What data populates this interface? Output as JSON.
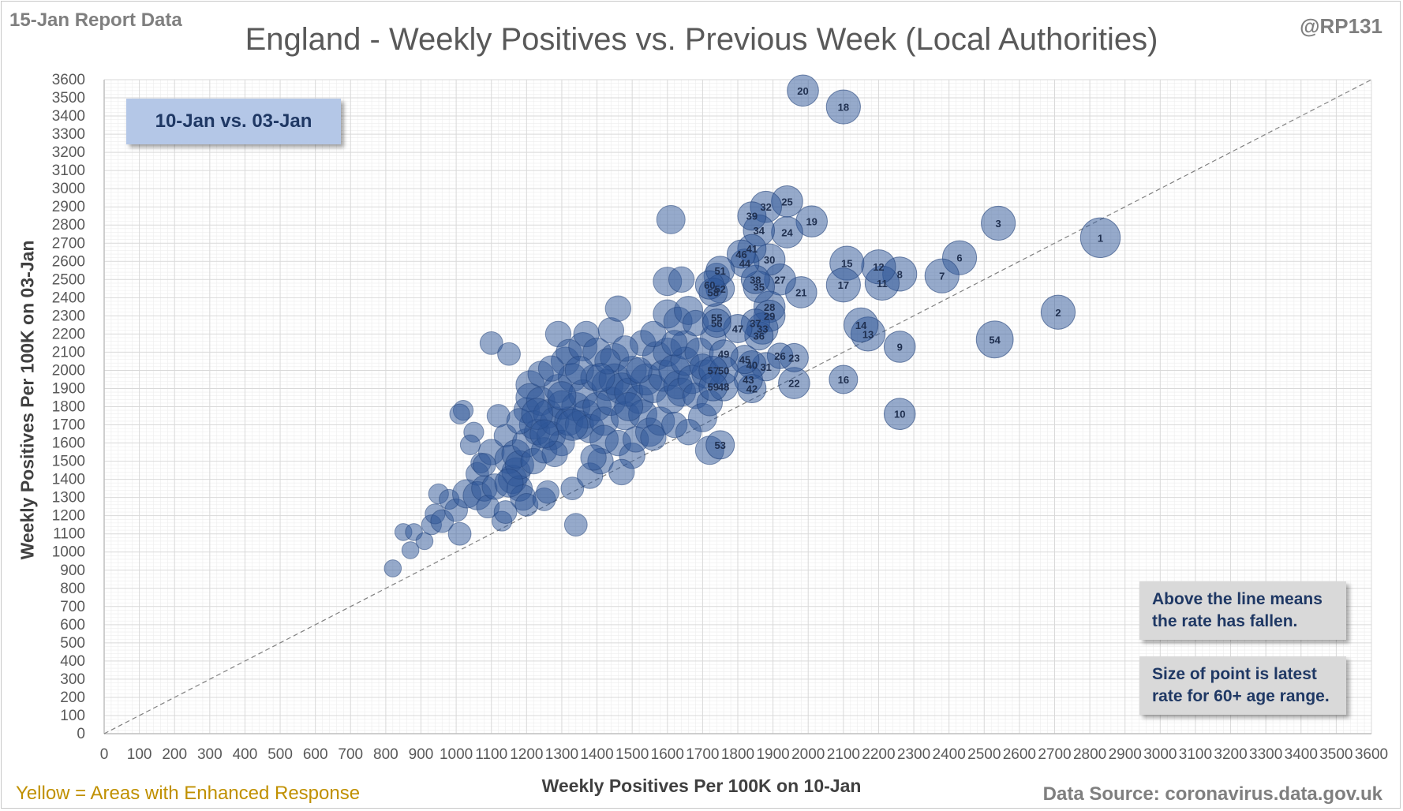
{
  "header": {
    "report_date": "15-Jan Report Data",
    "handle": "@RP131",
    "title": "England - Weekly Positives vs. Previous Week (Local Authorities)"
  },
  "date_box": "10-Jan vs. 03-Jan",
  "notes": [
    "Above the line means the rate has fallen.",
    "Size of point is latest rate for 60+ age range."
  ],
  "footer": {
    "legend_text": "Yellow = Areas with Enhanced  Response",
    "source": "Data Source: coronavirus.data.gov.uk"
  },
  "colors": {
    "bubble": "#2e5597",
    "bubble_stroke": "#1f3f78",
    "enhanced": "#c09000",
    "grid": "#d9d9d9",
    "box": "#b4c7e7",
    "note_box": "#d9d9d9"
  },
  "chart_data": {
    "type": "scatter",
    "title": "England - Weekly Positives vs. Previous Week (Local Authorities)",
    "xlabel": "Weekly Positives Per 100K on 10-Jan",
    "ylabel": "Weekly Positives Per 100K on 03-Jan",
    "xlim": [
      0,
      3600
    ],
    "ylim": [
      0,
      3600
    ],
    "x_ticks": [
      0,
      100,
      200,
      300,
      400,
      500,
      600,
      700,
      800,
      900,
      1000,
      1100,
      1200,
      1300,
      1400,
      1500,
      1600,
      1700,
      1800,
      1900,
      2000,
      2100,
      2200,
      2300,
      2400,
      2500,
      2600,
      2700,
      2800,
      2900,
      3000,
      3100,
      3200,
      3300,
      3400,
      3500,
      3600
    ],
    "y_ticks": [
      0,
      100,
      200,
      300,
      400,
      500,
      600,
      700,
      800,
      900,
      1000,
      1100,
      1200,
      1300,
      1400,
      1500,
      1600,
      1700,
      1800,
      1900,
      2000,
      2100,
      2200,
      2300,
      2400,
      2500,
      2600,
      2700,
      2800,
      2900,
      3000,
      3100,
      3200,
      3300,
      3400,
      3500,
      3600
    ],
    "grid": true,
    "reference_line": "y = x",
    "labelled_points": [
      {
        "label": "1",
        "x": 2830,
        "y": 2730,
        "size": 1.4
      },
      {
        "label": "2",
        "x": 2710,
        "y": 2320,
        "size": 1.2
      },
      {
        "label": "3",
        "x": 2540,
        "y": 2810,
        "size": 1.2
      },
      {
        "label": "54",
        "x": 2530,
        "y": 2170,
        "size": 1.3
      },
      {
        "label": "6",
        "x": 2430,
        "y": 2620,
        "size": 1.2
      },
      {
        "label": "7",
        "x": 2380,
        "y": 2520,
        "size": 1.2
      },
      {
        "label": "8",
        "x": 2260,
        "y": 2530,
        "size": 1.2
      },
      {
        "label": "9",
        "x": 2260,
        "y": 2130,
        "size": 1.1
      },
      {
        "label": "10",
        "x": 2260,
        "y": 1760,
        "size": 1.1
      },
      {
        "label": "11",
        "x": 2210,
        "y": 2480,
        "size": 1.2
      },
      {
        "label": "12",
        "x": 2200,
        "y": 2570,
        "size": 1.2
      },
      {
        "label": "13",
        "x": 2170,
        "y": 2200,
        "size": 1.2
      },
      {
        "label": "14",
        "x": 2150,
        "y": 2250,
        "size": 1.2
      },
      {
        "label": "15",
        "x": 2110,
        "y": 2590,
        "size": 1.2
      },
      {
        "label": "16",
        "x": 2100,
        "y": 1950,
        "size": 1.0
      },
      {
        "label": "17",
        "x": 2100,
        "y": 2470,
        "size": 1.2
      },
      {
        "label": "18",
        "x": 2100,
        "y": 3450,
        "size": 1.2
      },
      {
        "label": "19",
        "x": 2010,
        "y": 2820,
        "size": 1.1
      },
      {
        "label": "20",
        "x": 1985,
        "y": 3540,
        "size": 1.1
      },
      {
        "label": "21",
        "x": 1980,
        "y": 2430,
        "size": 1.1
      },
      {
        "label": "22",
        "x": 1960,
        "y": 1930,
        "size": 1.1
      },
      {
        "label": "23",
        "x": 1960,
        "y": 2070,
        "size": 1.0
      },
      {
        "label": "24",
        "x": 1940,
        "y": 2760,
        "size": 1.1
      },
      {
        "label": "25",
        "x": 1940,
        "y": 2930,
        "size": 1.1
      },
      {
        "label": "26",
        "x": 1920,
        "y": 2080,
        "size": 0.9
      },
      {
        "label": "27",
        "x": 1920,
        "y": 2500,
        "size": 1.1
      },
      {
        "label": "28",
        "x": 1890,
        "y": 2350,
        "size": 1.1
      },
      {
        "label": "29",
        "x": 1890,
        "y": 2300,
        "size": 1.1
      },
      {
        "label": "30",
        "x": 1890,
        "y": 2610,
        "size": 1.1
      },
      {
        "label": "31",
        "x": 1880,
        "y": 2020,
        "size": 1.0
      },
      {
        "label": "32",
        "x": 1880,
        "y": 2900,
        "size": 1.1
      },
      {
        "label": "33",
        "x": 1870,
        "y": 2230,
        "size": 1.1
      },
      {
        "label": "34",
        "x": 1860,
        "y": 2770,
        "size": 1.1
      },
      {
        "label": "35",
        "x": 1860,
        "y": 2460,
        "size": 1.1
      },
      {
        "label": "36",
        "x": 1860,
        "y": 2190,
        "size": 1.0
      },
      {
        "label": "37",
        "x": 1850,
        "y": 2260,
        "size": 1.0
      },
      {
        "label": "38",
        "x": 1850,
        "y": 2500,
        "size": 1.0
      },
      {
        "label": "39",
        "x": 1840,
        "y": 2850,
        "size": 1.0
      },
      {
        "label": "40",
        "x": 1840,
        "y": 2030,
        "size": 1.0
      },
      {
        "label": "41",
        "x": 1840,
        "y": 2670,
        "size": 1.0
      },
      {
        "label": "42",
        "x": 1840,
        "y": 1900,
        "size": 1.0
      },
      {
        "label": "43",
        "x": 1830,
        "y": 1950,
        "size": 1.0
      },
      {
        "label": "44",
        "x": 1820,
        "y": 2590,
        "size": 1.0
      },
      {
        "label": "45",
        "x": 1820,
        "y": 2060,
        "size": 1.0
      },
      {
        "label": "46",
        "x": 1810,
        "y": 2640,
        "size": 1.0
      },
      {
        "label": "47",
        "x": 1800,
        "y": 2230,
        "size": 1.0
      },
      {
        "label": "48",
        "x": 1760,
        "y": 1910,
        "size": 1.0
      },
      {
        "label": "49",
        "x": 1760,
        "y": 2090,
        "size": 1.0
      },
      {
        "label": "50",
        "x": 1760,
        "y": 2000,
        "size": 1.0
      },
      {
        "label": "51",
        "x": 1750,
        "y": 2550,
        "size": 1.0
      },
      {
        "label": "52",
        "x": 1750,
        "y": 2450,
        "size": 1.0
      },
      {
        "label": "53",
        "x": 1750,
        "y": 1590,
        "size": 1.0
      },
      {
        "label": "55",
        "x": 1740,
        "y": 2290,
        "size": 1.0
      },
      {
        "label": "56",
        "x": 1740,
        "y": 2260,
        "size": 1.0
      },
      {
        "label": "57",
        "x": 1730,
        "y": 2000,
        "size": 1.0
      },
      {
        "label": "58",
        "x": 1730,
        "y": 2430,
        "size": 1.0
      },
      {
        "label": "59",
        "x": 1730,
        "y": 1910,
        "size": 1.0
      },
      {
        "label": "60",
        "x": 1720,
        "y": 2470,
        "size": 1.0
      }
    ],
    "other_points": [
      [
        820,
        910,
        0.6
      ],
      [
        850,
        1110,
        0.6
      ],
      [
        870,
        1010,
        0.6
      ],
      [
        880,
        1110,
        0.6
      ],
      [
        910,
        1060,
        0.6
      ],
      [
        930,
        1150,
        0.7
      ],
      [
        940,
        1210,
        0.7
      ],
      [
        950,
        1320,
        0.7
      ],
      [
        960,
        1170,
        0.8
      ],
      [
        980,
        1290,
        0.7
      ],
      [
        1000,
        1230,
        0.8
      ],
      [
        1010,
        1100,
        0.8
      ],
      [
        1020,
        1780,
        0.7
      ],
      [
        1010,
        1760,
        0.7
      ],
      [
        1050,
        1660,
        0.7
      ],
      [
        1040,
        1590,
        0.7
      ],
      [
        1060,
        1430,
        0.8
      ],
      [
        1070,
        1490,
        0.7
      ],
      [
        1030,
        1320,
        1.0
      ],
      [
        1060,
        1310,
        1.0
      ],
      [
        1080,
        1350,
        0.9
      ],
      [
        1090,
        1250,
        0.8
      ],
      [
        1100,
        1550,
        0.9
      ],
      [
        1100,
        2150,
        0.8
      ],
      [
        1120,
        1750,
        0.8
      ],
      [
        1130,
        1170,
        0.7
      ],
      [
        1140,
        1640,
        0.8
      ],
      [
        1150,
        2090,
        0.8
      ],
      [
        1150,
        1510,
        1.0
      ],
      [
        1160,
        1400,
        1.0
      ],
      [
        1170,
        1440,
        1.0
      ],
      [
        1170,
        1540,
        1.0
      ],
      [
        1180,
        1350,
        0.9
      ],
      [
        1180,
        1480,
        1.0
      ],
      [
        1190,
        1300,
        0.9
      ],
      [
        1200,
        1600,
        1.0
      ],
      [
        1200,
        1780,
        0.9
      ],
      [
        1200,
        1260,
        0.8
      ],
      [
        1210,
        1920,
        1.0
      ],
      [
        1210,
        1850,
        1.0
      ],
      [
        1220,
        1700,
        1.0
      ],
      [
        1220,
        1500,
        0.9
      ],
      [
        1230,
        1660,
        0.9
      ],
      [
        1240,
        1830,
        1.0
      ],
      [
        1240,
        1980,
        0.9
      ],
      [
        1250,
        1560,
        0.9
      ],
      [
        1250,
        1290,
        0.8
      ],
      [
        1260,
        1330,
        0.8
      ],
      [
        1260,
        1760,
        1.0
      ],
      [
        1270,
        1640,
        1.0
      ],
      [
        1280,
        1720,
        1.0
      ],
      [
        1290,
        1900,
        1.0
      ],
      [
        1290,
        2200,
        0.9
      ],
      [
        1300,
        1810,
        1.0
      ],
      [
        1300,
        1600,
        0.9
      ],
      [
        1310,
        2050,
        1.0
      ],
      [
        1320,
        1720,
        1.0
      ],
      [
        1320,
        2100,
        0.9
      ],
      [
        1330,
        1960,
        1.0
      ],
      [
        1330,
        1350,
        0.8
      ],
      [
        1340,
        1150,
        0.8
      ],
      [
        1340,
        1800,
        1.0
      ],
      [
        1350,
        1700,
        1.0
      ],
      [
        1360,
        1870,
        1.0
      ],
      [
        1360,
        2130,
        1.0
      ],
      [
        1370,
        1760,
        1.0
      ],
      [
        1370,
        2200,
        0.9
      ],
      [
        1380,
        1680,
        1.0
      ],
      [
        1380,
        1420,
        0.9
      ],
      [
        1390,
        1960,
        0.9
      ],
      [
        1400,
        1800,
        1.0
      ],
      [
        1400,
        2100,
        1.0
      ],
      [
        1410,
        1500,
        0.9
      ],
      [
        1420,
        1720,
        1.0
      ],
      [
        1420,
        1620,
        1.0
      ],
      [
        1430,
        1920,
        1.1
      ],
      [
        1440,
        2220,
        0.9
      ],
      [
        1440,
        1830,
        1.0
      ],
      [
        1450,
        2070,
        1.0
      ],
      [
        1450,
        1950,
        1.1
      ],
      [
        1460,
        2340,
        0.9
      ],
      [
        1460,
        1600,
        0.9
      ],
      [
        1470,
        1900,
        1.1
      ],
      [
        1480,
        1750,
        1.0
      ],
      [
        1490,
        1880,
        1.0
      ],
      [
        1500,
        2000,
        1.0
      ],
      [
        1500,
        1530,
        0.9
      ],
      [
        1510,
        1620,
        0.9
      ],
      [
        1520,
        1840,
        1.0
      ],
      [
        1530,
        2150,
        0.9
      ],
      [
        1530,
        1760,
        1.0
      ],
      [
        1540,
        1950,
        1.1
      ],
      [
        1550,
        1660,
        1.0
      ],
      [
        1560,
        1900,
        1.0
      ],
      [
        1570,
        2080,
        1.0
      ],
      [
        1580,
        1720,
        1.0
      ],
      [
        1590,
        1970,
        1.1
      ],
      [
        1600,
        2100,
        1.0
      ],
      [
        1600,
        2310,
        1.0
      ],
      [
        1600,
        2490,
        1.0
      ],
      [
        1610,
        2830,
        1.0
      ],
      [
        1610,
        1840,
        1.0
      ],
      [
        1620,
        1700,
        0.9
      ],
      [
        1620,
        2000,
        1.1
      ],
      [
        1630,
        2270,
        1.0
      ],
      [
        1630,
        1920,
        1.0
      ],
      [
        1640,
        2500,
        0.9
      ],
      [
        1640,
        1880,
        1.0
      ],
      [
        1650,
        2140,
        1.0
      ],
      [
        1650,
        2050,
        1.0
      ],
      [
        1660,
        2330,
        1.0
      ],
      [
        1670,
        1950,
        1.0
      ],
      [
        1680,
        1860,
        0.9
      ],
      [
        1690,
        2100,
        1.0
      ],
      [
        1700,
        1740,
        1.0
      ],
      [
        1710,
        1980,
        1.0
      ],
      [
        1720,
        1560,
        1.0
      ],
      [
        1720,
        1820,
        0.9
      ],
      [
        1730,
        2180,
        0.9
      ],
      [
        1740,
        2520,
        0.9
      ],
      [
        1680,
        2260,
        0.9
      ],
      [
        1660,
        1660,
        0.9
      ],
      [
        1560,
        1630,
        0.9
      ],
      [
        1470,
        1440,
        0.9
      ],
      [
        1390,
        1520,
        0.9
      ],
      [
        1280,
        1540,
        0.9
      ],
      [
        1180,
        1720,
        0.9
      ],
      [
        1110,
        1360,
        0.9
      ],
      [
        1080,
        1480,
        0.8
      ],
      [
        1140,
        1220,
        0.8
      ],
      [
        1350,
        2000,
        1.0
      ],
      [
        1270,
        2010,
        0.9
      ],
      [
        1480,
        2120,
        0.9
      ],
      [
        1430,
        2050,
        0.9
      ],
      [
        1560,
        2200,
        0.9
      ],
      [
        1520,
        2000,
        0.9
      ],
      [
        1620,
        2150,
        0.9
      ],
      [
        1700,
        2020,
        0.9
      ],
      [
        1330,
        1700,
        1.1
      ],
      [
        1230,
        1760,
        1.1
      ],
      [
        1150,
        1380,
        1.0
      ],
      [
        1250,
        1650,
        1.0
      ],
      [
        1300,
        1860,
        1.0
      ],
      [
        1410,
        1960,
        1.0
      ],
      [
        1490,
        1800,
        1.0
      ]
    ]
  }
}
